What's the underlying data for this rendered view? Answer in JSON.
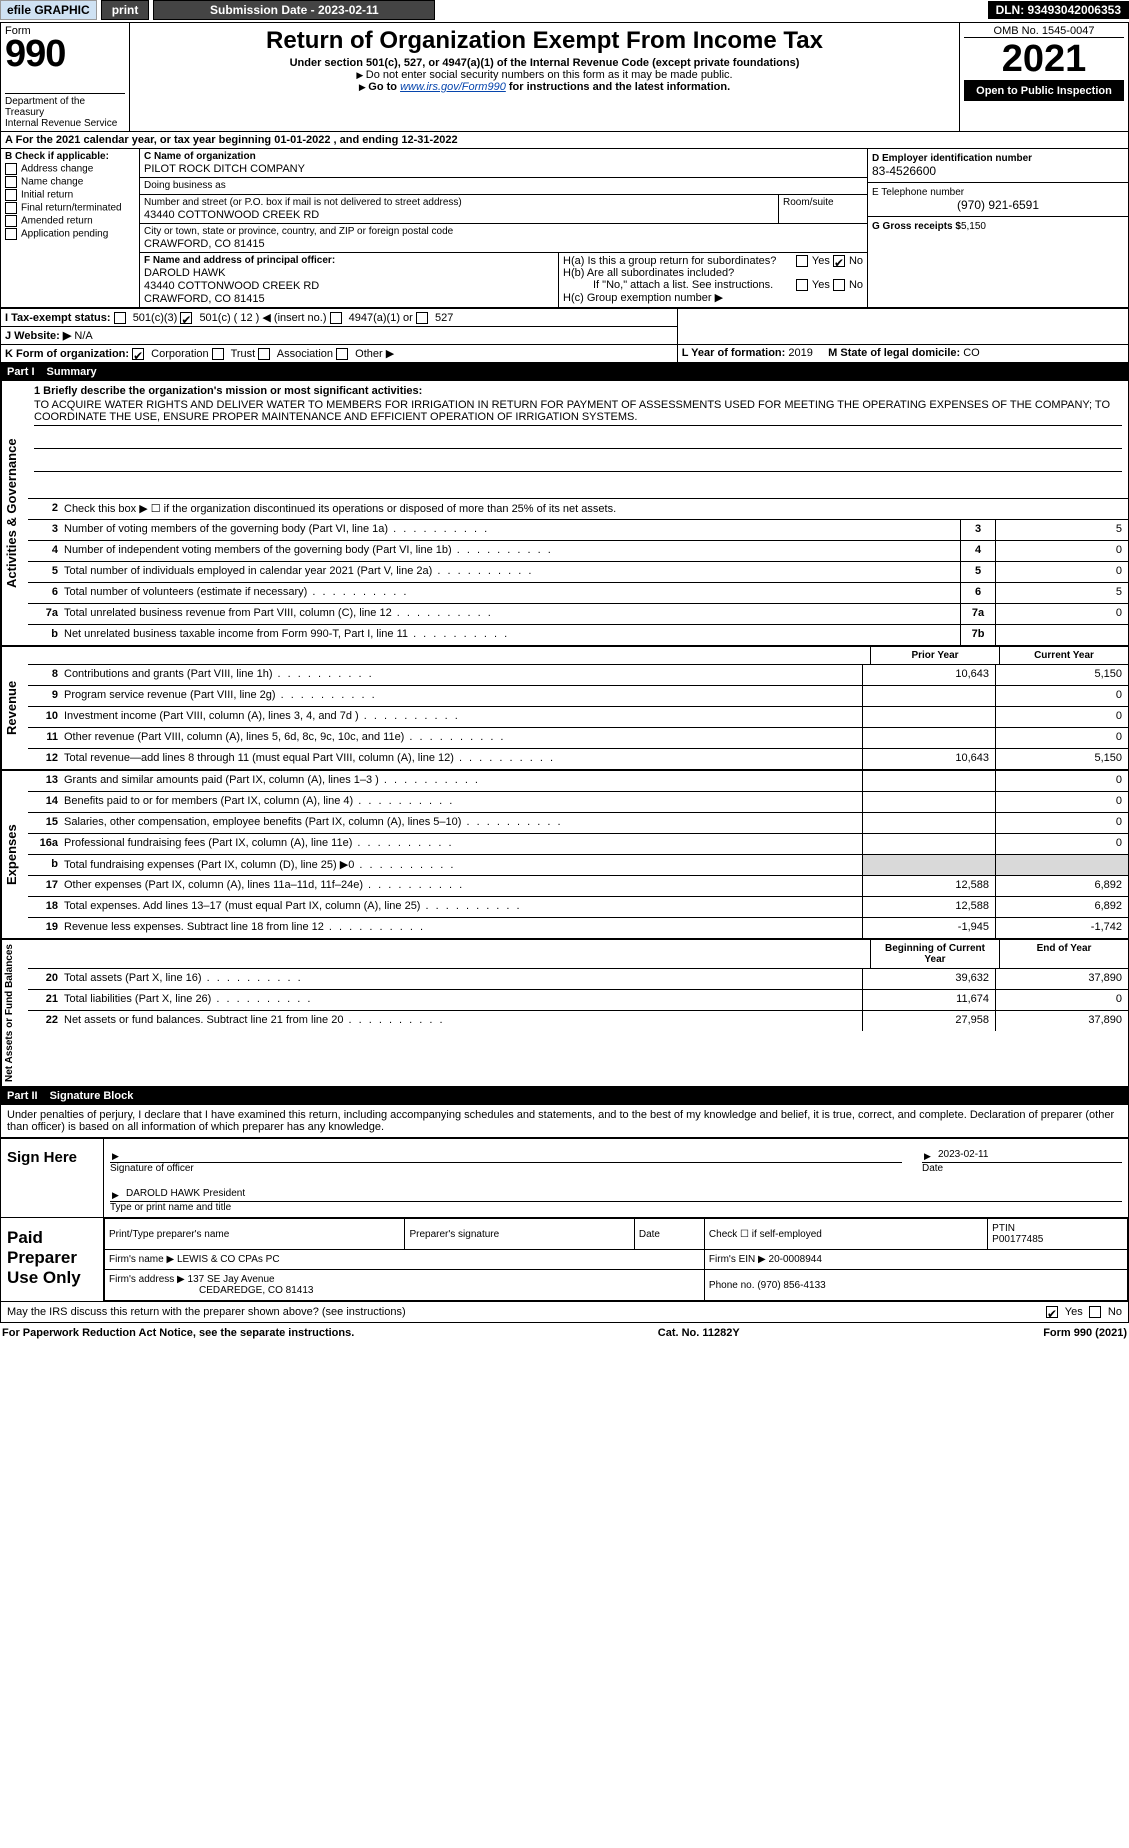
{
  "topbar": {
    "efile": "efile GRAPHIC",
    "print": "print",
    "sub_label": "Submission Date - 2023-02-11",
    "dln": "DLN: 93493042006353"
  },
  "header": {
    "form_word": "Form",
    "form_no": "990",
    "title": "Return of Organization Exempt From Income Tax",
    "sub1": "Under section 501(c), 527, or 4947(a)(1) of the Internal Revenue Code (except private foundations)",
    "sub2": "Do not enter social security numbers on this form as it may be made public.",
    "sub3_pre": "Go to ",
    "sub3_link": "www.irs.gov/Form990",
    "sub3_post": " for instructions and the latest information.",
    "dept": "Department of the Treasury",
    "irs": "Internal Revenue Service",
    "omb": "OMB No. 1545-0047",
    "year": "2021",
    "open": "Open to Public Inspection"
  },
  "row_a": "For the 2021 calendar year, or tax year beginning 01-01-2022    , and ending 12-31-2022",
  "box_b": {
    "label": "B Check if applicable:",
    "items": [
      "Address change",
      "Name change",
      "Initial return",
      "Final return/terminated",
      "Amended return",
      "Application pending"
    ]
  },
  "org": {
    "c_label": "C Name of organization",
    "name": "PILOT ROCK DITCH COMPANY",
    "dba_label": "Doing business as",
    "dba": "",
    "addr_label": "Number and street (or P.O. box if mail is not delivered to street address)",
    "room_label": "Room/suite",
    "addr": "43440 COTTONWOOD CREEK RD",
    "city_label": "City or town, state or province, country, and ZIP or foreign postal code",
    "city": "CRAWFORD, CO  81415",
    "f_label": "F Name and address of principal officer:",
    "f_name": "DAROLD HAWK",
    "f_addr1": "43440 COTTONWOOD CREEK RD",
    "f_addr2": "CRAWFORD, CO  81415"
  },
  "right": {
    "d_label": "D Employer identification number",
    "d_val": "83-4526600",
    "e_label": "E Telephone number",
    "e_val": "(970) 921-6591",
    "g_label": "G Gross receipts $",
    "g_val": "5,150"
  },
  "h": {
    "a": "H(a)  Is this a group return for subordinates?",
    "b": "H(b)  Are all subordinates included?",
    "b2": "If \"No,\" attach a list. See instructions.",
    "c": "H(c)  Group exemption number ▶",
    "no_checked": true
  },
  "tax_status": {
    "i": "I  Tax-exempt status:",
    "opts": [
      "501(c)(3)",
      "501(c) ( 12 ) ◀ (insert no.)",
      "4947(a)(1) or",
      "527"
    ],
    "checked_index": 1
  },
  "j": {
    "label": "J  Website: ▶",
    "val": "N/A"
  },
  "k": {
    "label": "K Form of organization:",
    "opts": [
      "Corporation",
      "Trust",
      "Association",
      "Other ▶"
    ],
    "checked_index": 0
  },
  "l": {
    "label": "L Year of formation:",
    "val": "2019"
  },
  "m": {
    "label": "M State of legal domicile:",
    "val": "CO"
  },
  "part1": {
    "num": "Part I",
    "title": "Summary"
  },
  "part2": {
    "num": "Part II",
    "title": "Signature Block"
  },
  "mission": {
    "label": "1 Briefly describe the organization's mission or most significant activities:",
    "text": "TO ACQUIRE WATER RIGHTS AND DELIVER WATER TO MEMBERS FOR IRRIGATION IN RETURN FOR PAYMENT OF ASSESSMENTS USED FOR MEETING THE OPERATING EXPENSES OF THE COMPANY; TO COORDINATE THE USE, ENSURE PROPER MAINTENANCE AND EFFICIENT OPERATION OF IRRIGATION SYSTEMS."
  },
  "line2": "Check this box ▶ ☐  if the organization discontinued its operations or disposed of more than 25% of its net assets.",
  "activities": [
    {
      "n": "3",
      "d": "Number of voting members of the governing body (Part VI, line 1a)",
      "c": "3",
      "v": "5"
    },
    {
      "n": "4",
      "d": "Number of independent voting members of the governing body (Part VI, line 1b)",
      "c": "4",
      "v": "0"
    },
    {
      "n": "5",
      "d": "Total number of individuals employed in calendar year 2021 (Part V, line 2a)",
      "c": "5",
      "v": "0"
    },
    {
      "n": "6",
      "d": "Total number of volunteers (estimate if necessary)",
      "c": "6",
      "v": "5"
    },
    {
      "n": "7a",
      "d": "Total unrelated business revenue from Part VIII, column (C), line 12",
      "c": "7a",
      "v": "0"
    },
    {
      "n": "b",
      "d": "Net unrelated business taxable income from Form 990-T, Part I, line 11",
      "c": "7b",
      "v": ""
    }
  ],
  "col_headers": {
    "prior": "Prior Year",
    "current": "Current Year",
    "beg": "Beginning of Current Year",
    "end": "End of Year"
  },
  "revenue": [
    {
      "n": "8",
      "d": "Contributions and grants (Part VIII, line 1h)",
      "p": "10,643",
      "c": "5,150"
    },
    {
      "n": "9",
      "d": "Program service revenue (Part VIII, line 2g)",
      "p": "",
      "c": "0"
    },
    {
      "n": "10",
      "d": "Investment income (Part VIII, column (A), lines 3, 4, and 7d )",
      "p": "",
      "c": "0"
    },
    {
      "n": "11",
      "d": "Other revenue (Part VIII, column (A), lines 5, 6d, 8c, 9c, 10c, and 11e)",
      "p": "",
      "c": "0"
    },
    {
      "n": "12",
      "d": "Total revenue—add lines 8 through 11 (must equal Part VIII, column (A), line 12)",
      "p": "10,643",
      "c": "5,150"
    }
  ],
  "expenses": [
    {
      "n": "13",
      "d": "Grants and similar amounts paid (Part IX, column (A), lines 1–3 )",
      "p": "",
      "c": "0"
    },
    {
      "n": "14",
      "d": "Benefits paid to or for members (Part IX, column (A), line 4)",
      "p": "",
      "c": "0"
    },
    {
      "n": "15",
      "d": "Salaries, other compensation, employee benefits (Part IX, column (A), lines 5–10)",
      "p": "",
      "c": "0"
    },
    {
      "n": "16a",
      "d": "Professional fundraising fees (Part IX, column (A), line 11e)",
      "p": "",
      "c": "0"
    },
    {
      "n": "b",
      "d": "Total fundraising expenses (Part IX, column (D), line 25) ▶0",
      "p": "SHADE",
      "c": "SHADE"
    },
    {
      "n": "17",
      "d": "Other expenses (Part IX, column (A), lines 11a–11d, 11f–24e)",
      "p": "12,588",
      "c": "6,892"
    },
    {
      "n": "18",
      "d": "Total expenses. Add lines 13–17 (must equal Part IX, column (A), line 25)",
      "p": "12,588",
      "c": "6,892"
    },
    {
      "n": "19",
      "d": "Revenue less expenses. Subtract line 18 from line 12",
      "p": "-1,945",
      "c": "-1,742"
    }
  ],
  "netassets": [
    {
      "n": "20",
      "d": "Total assets (Part X, line 16)",
      "p": "39,632",
      "c": "37,890"
    },
    {
      "n": "21",
      "d": "Total liabilities (Part X, line 26)",
      "p": "11,674",
      "c": "0"
    },
    {
      "n": "22",
      "d": "Net assets or fund balances. Subtract line 21 from line 20",
      "p": "27,958",
      "c": "37,890"
    }
  ],
  "side_labels": {
    "ag": "Activities & Governance",
    "rev": "Revenue",
    "exp": "Expenses",
    "na": "Net Assets or Fund Balances"
  },
  "penalties": "Under penalties of perjury, I declare that I have examined this return, including accompanying schedules and statements, and to the best of my knowledge and belief, it is true, correct, and complete. Declaration of preparer (other than officer) is based on all information of which preparer has any knowledge.",
  "sign": {
    "here": "Sign Here",
    "sig_of": "Signature of officer",
    "date": "Date",
    "date_val": "2023-02-11",
    "name": "DAROLD HAWK President",
    "type_label": "Type or print name and title"
  },
  "paid": {
    "label": "Paid Preparer Use Only",
    "h1": "Print/Type preparer's name",
    "h2": "Preparer's signature",
    "h3": "Date",
    "h4": "Check ☐ if self-employed",
    "h5": "PTIN",
    "ptin": "P00177485",
    "firm_name_l": "Firm's name    ▶",
    "firm_name": "LEWIS & CO CPAs PC",
    "firm_ein_l": "Firm's EIN ▶",
    "firm_ein": "20-0008944",
    "firm_addr_l": "Firm's address ▶",
    "firm_addr": "137 SE Jay Avenue",
    "firm_city": "CEDAREDGE, CO  81413",
    "phone_l": "Phone no.",
    "phone": "(970) 856-4133"
  },
  "may_irs": "May the IRS discuss this return with the preparer shown above? (see instructions)",
  "footer": {
    "pra": "For Paperwork Reduction Act Notice, see the separate instructions.",
    "cat": "Cat. No. 11282Y",
    "form": "Form 990 (2021)"
  },
  "colors": {
    "topbar_bg": "#cfe2f3",
    "btn_bg": "#444444",
    "dln_bg": "#000000",
    "link": "#0645ad",
    "shade": "#d9d9d9"
  }
}
